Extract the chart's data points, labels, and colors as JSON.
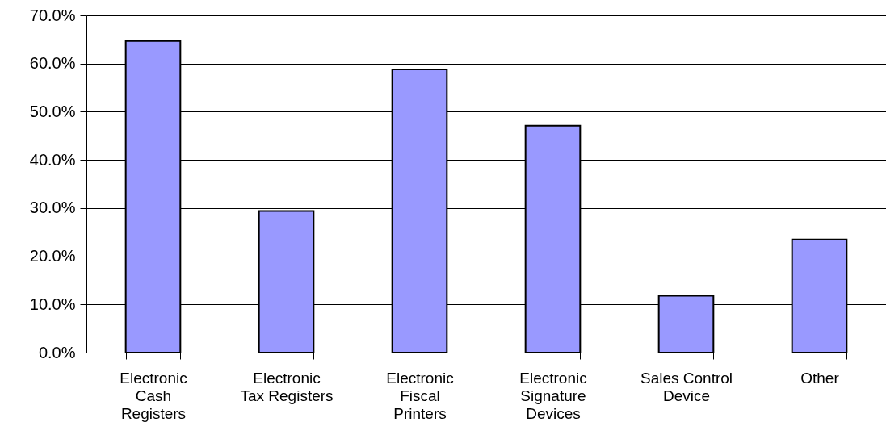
{
  "chart_data": {
    "type": "bar",
    "categories": [
      "Electronic Cash Registers",
      "Electronic Tax Registers",
      "Electronic Fiscal Printers",
      "Electronic Signature Devices",
      "Sales Control Device",
      "Other"
    ],
    "values": [
      64.7,
      29.4,
      58.8,
      47.1,
      11.8,
      23.5
    ],
    "color": "#9999ff",
    "ylim": [
      0,
      70
    ],
    "yticks": [
      {
        "value": 0,
        "label": "0.0%"
      },
      {
        "value": 10,
        "label": "10.0%"
      },
      {
        "value": 20,
        "label": "20.0%"
      },
      {
        "value": 30,
        "label": "30.0%"
      },
      {
        "value": 40,
        "label": "40.0%"
      },
      {
        "value": 50,
        "label": "50.0%"
      },
      {
        "value": 60,
        "label": "60.0%"
      },
      {
        "value": 70,
        "label": "70.0%"
      }
    ],
    "grid": "y"
  }
}
